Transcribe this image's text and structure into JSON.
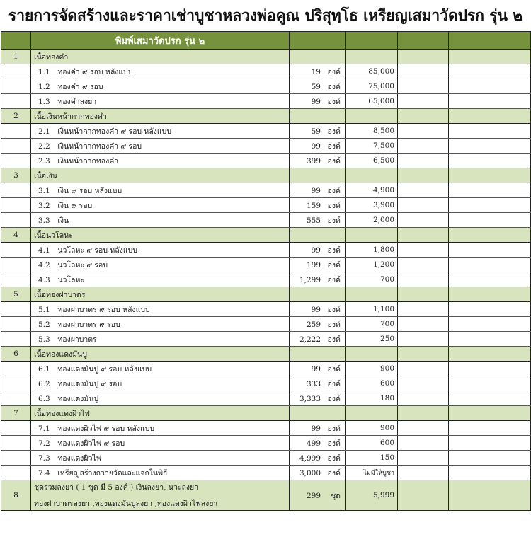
{
  "title": "รายการจัดสร้างและราคาเช่าบูชาหลวงพ่อคูณ ปริสุทฺโธ   เหรียญเสมาวัดปรก รุ่น ๒",
  "header": {
    "column_title": "พิมพ์เสมาวัดปรก รุ่น ๒"
  },
  "colors": {
    "header_bg": "#76923c",
    "section_bg": "#d7e4bd"
  },
  "sections": [
    {
      "no": "1",
      "name": "เนื้อทองคำ",
      "items": [
        {
          "code": "1.1",
          "name": "ทองคำ ๙ รอบ หลังแบบ",
          "qty": "19",
          "unit": "องค์",
          "price": "85,000"
        },
        {
          "code": "1.2",
          "name": "ทองคำ ๙ รอบ",
          "qty": "59",
          "unit": "องค์",
          "price": "75,000"
        },
        {
          "code": "1.3",
          "name": "ทองคำลงยา",
          "qty": "99",
          "unit": "องค์",
          "price": "65,000"
        }
      ]
    },
    {
      "no": "2",
      "name": "เนื้อเงินหน้ากากทองคำ",
      "items": [
        {
          "code": "2.1",
          "name": "เงินหน้ากากทองคำ ๙ รอบ หลังแบบ",
          "qty": "59",
          "unit": "องค์",
          "price": "8,500"
        },
        {
          "code": "2.2",
          "name": "เงินหน้ากากทองคำ ๙ รอบ",
          "qty": "99",
          "unit": "องค์",
          "price": "7,500"
        },
        {
          "code": "2.3",
          "name": "เงินหน้ากากทองคำ",
          "qty": "399",
          "unit": "องค์",
          "price": "6,500"
        }
      ]
    },
    {
      "no": "3",
      "name": "เนื้อเงิน",
      "items": [
        {
          "code": "3.1",
          "name": "เงิน ๙ รอบ หลังแบบ",
          "qty": "99",
          "unit": "องค์",
          "price": "4,900"
        },
        {
          "code": "3.2",
          "name": "เงิน ๙ รอบ",
          "qty": "159",
          "unit": "องค์",
          "price": "3,900"
        },
        {
          "code": "3.3",
          "name": "เงิน",
          "qty": "555",
          "unit": "องค์",
          "price": "2,000"
        }
      ]
    },
    {
      "no": "4",
      "name": "เนื้อนวโลหะ",
      "items": [
        {
          "code": "4.1",
          "name": "นวโลหะ ๙ รอบ หลังแบบ",
          "qty": "99",
          "unit": "องค์",
          "price": "1,800"
        },
        {
          "code": "4.2",
          "name": "นวโลหะ ๙ รอบ",
          "qty": "199",
          "unit": "องค์",
          "price": "1,200"
        },
        {
          "code": "4.3",
          "name": "นวโลหะ",
          "qty": "1,299",
          "unit": "องค์",
          "price": "700"
        }
      ]
    },
    {
      "no": "5",
      "name": "เนื้อทองฝาบาตร",
      "items": [
        {
          "code": "5.1",
          "name": "ทองฝาบาตร ๙ รอบ หลังแบบ",
          "qty": "99",
          "unit": "องค์",
          "price": "1,100"
        },
        {
          "code": "5.2",
          "name": "ทองฝาบาตร ๙ รอบ",
          "qty": "259",
          "unit": "องค์",
          "price": "700"
        },
        {
          "code": "5.3",
          "name": "ทองฝาบาตร",
          "qty": "2,222",
          "unit": "องค์",
          "price": "250"
        }
      ]
    },
    {
      "no": "6",
      "name": "เนื้อทองแดงมันปู",
      "items": [
        {
          "code": "6.1",
          "name": "ทองแดงมันปู ๙ รอบ หลังแบบ",
          "qty": "99",
          "unit": "องค์",
          "price": "900"
        },
        {
          "code": "6.2",
          "name": "ทองแดงมันปู ๙ รอบ",
          "qty": "333",
          "unit": "องค์",
          "price": "600"
        },
        {
          "code": "6.3",
          "name": "ทองแดงมันปู",
          "qty": "3,333",
          "unit": "องค์",
          "price": "180"
        }
      ]
    },
    {
      "no": "7",
      "name": "เนื้อทองแดงผิวไฟ",
      "items": [
        {
          "code": "7.1",
          "name": "ทองแดงผิวไฟ ๙ รอบ หลังแบบ",
          "qty": "99",
          "unit": "องค์",
          "price": "900"
        },
        {
          "code": "7.2",
          "name": "ทองแดงผิวไฟ ๙ รอบ",
          "qty": "499",
          "unit": "องค์",
          "price": "600"
        },
        {
          "code": "7.3",
          "name": "ทองแดงผิวไฟ",
          "qty": "4,999",
          "unit": "องค์",
          "price": "150"
        },
        {
          "code": "7.4",
          "name": "เหรียญสร้างถวายวัดและแจกในพิธี",
          "qty": "3,000",
          "unit": "องค์",
          "price": "ไม่มีให้บูชา"
        }
      ]
    }
  ],
  "set": {
    "no": "8",
    "line1": "ชุดรวมลงยา ( 1 ชุด มี 5 องค์ )  เงินลงยา, นวะลงยา",
    "line2": "ทองฝาบาตรลงยา ,ทองแดงมันปูลงยา ,ทองแดงผิวไฟลงยา",
    "qty": "299",
    "unit": "ชุด",
    "price": "5,999"
  }
}
